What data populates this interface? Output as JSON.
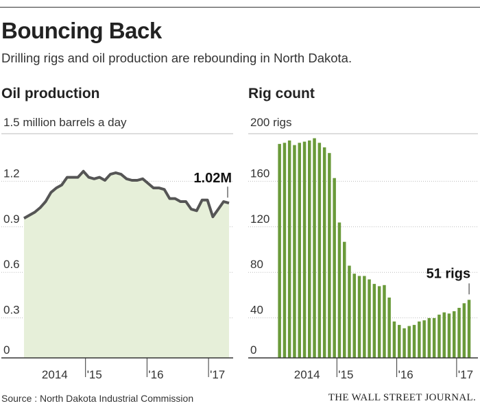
{
  "headline": "Bouncing Back",
  "dek": "Drilling rigs and oil production are rebounding in North Dakota.",
  "source": "Source : North Dakota Industrial Commission",
  "publisher": "THE WALL STREET JOURNAL.",
  "colors": {
    "line": "#555555",
    "area": "#e6efd9",
    "bar": "#6a9a3a",
    "axis": "#333333"
  },
  "chart_data": [
    {
      "type": "area",
      "title": "Oil production",
      "unit_label": "1.5 million barrels a day",
      "callout": "1.02M",
      "ylim": [
        0,
        1.5
      ],
      "y_ticks": [
        {
          "value": 1.2,
          "label": "1.2"
        },
        {
          "value": 0.9,
          "label": "0.9"
        },
        {
          "value": 0.6,
          "label": "0.6"
        },
        {
          "value": 0.3,
          "label": "0.3"
        },
        {
          "value": 0,
          "label": "0"
        }
      ],
      "x_labels": [
        "2014",
        "'15",
        "'16",
        "'17"
      ],
      "x_start": "2014-01",
      "x_end": "2017-04",
      "values": [
        0.92,
        0.94,
        0.96,
        0.99,
        1.03,
        1.09,
        1.12,
        1.14,
        1.19,
        1.19,
        1.19,
        1.23,
        1.19,
        1.18,
        1.19,
        1.17,
        1.21,
        1.22,
        1.21,
        1.18,
        1.17,
        1.17,
        1.18,
        1.15,
        1.12,
        1.12,
        1.11,
        1.05,
        1.05,
        1.03,
        1.03,
        0.98,
        0.97,
        1.04,
        1.04,
        0.93,
        0.98,
        1.03,
        1.02
      ]
    },
    {
      "type": "bar",
      "title": "Rig count",
      "unit_label": "200 rigs",
      "callout": "51 rigs",
      "ylim": [
        0,
        200
      ],
      "y_ticks": [
        {
          "value": 160,
          "label": "160"
        },
        {
          "value": 120,
          "label": "120"
        },
        {
          "value": 80,
          "label": "80"
        },
        {
          "value": 40,
          "label": "40"
        },
        {
          "value": 0,
          "label": "0"
        }
      ],
      "x_labels": [
        "2014",
        "'15",
        "'16",
        "'17"
      ],
      "x_start": "2014-01",
      "x_end": "2017-04",
      "values": [
        188,
        189,
        191,
        187,
        189,
        190,
        191,
        193,
        189,
        185,
        180,
        158,
        119,
        102,
        81,
        74,
        72,
        72,
        69,
        65,
        63,
        64,
        53,
        32,
        29,
        26,
        28,
        29,
        32,
        33,
        35,
        35,
        38,
        40,
        39,
        41,
        44,
        48,
        51
      ]
    }
  ]
}
